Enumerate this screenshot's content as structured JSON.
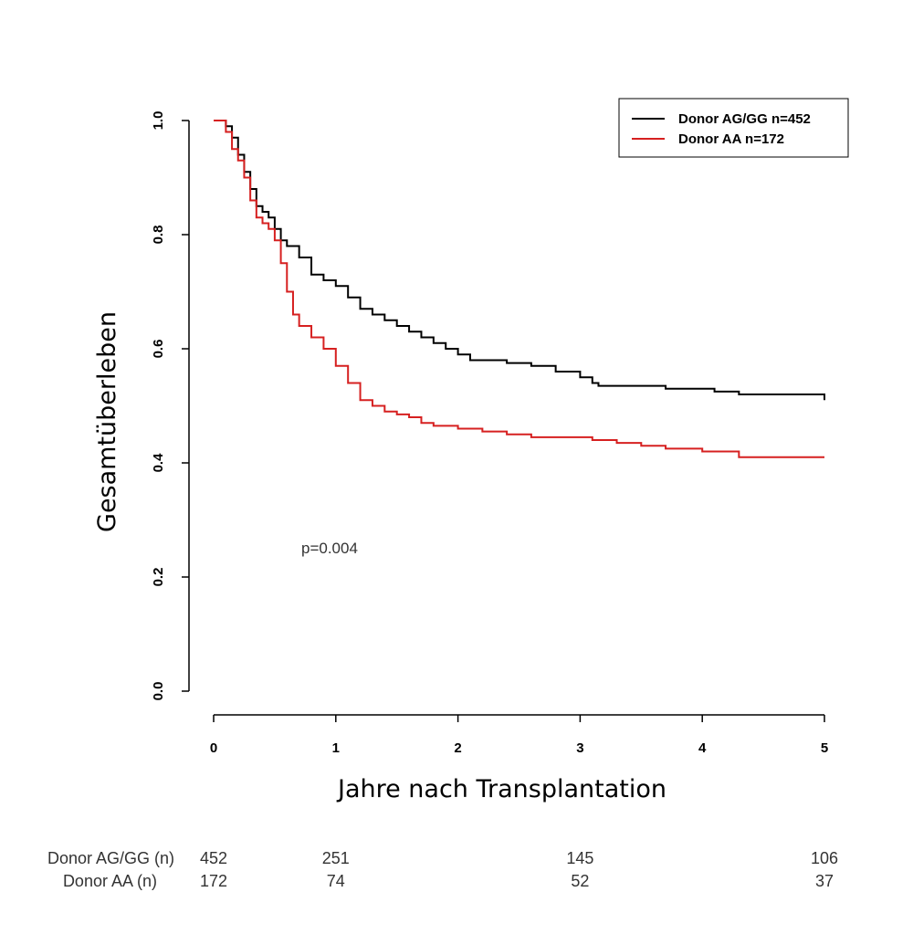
{
  "chart_data": {
    "type": "line",
    "subtype": "kaplan-meier",
    "xlabel": "Jahre nach Transplantation",
    "ylabel": "Gesamtüberleben",
    "xlim": [
      0,
      5
    ],
    "ylim": [
      0,
      1
    ],
    "xticks": [
      "0",
      "1",
      "2",
      "3",
      "4",
      "5"
    ],
    "yticks": [
      "0.0",
      "0.2",
      "0.4",
      "0.6",
      "0.8",
      "1.0"
    ],
    "legend_position": "top-right",
    "annotation": "p=0.004",
    "colors": {
      "donor_ag_gg": "#000000",
      "donor_aa": "#d62020"
    },
    "series": [
      {
        "name": "Donor AG/GG n=452",
        "x": [
          0,
          0.06,
          0.1,
          0.15,
          0.2,
          0.25,
          0.3,
          0.35,
          0.4,
          0.45,
          0.5,
          0.55,
          0.6,
          0.7,
          0.8,
          0.9,
          1.0,
          1.1,
          1.2,
          1.3,
          1.4,
          1.5,
          1.6,
          1.7,
          1.8,
          1.9,
          2.0,
          2.1,
          2.2,
          2.4,
          2.6,
          2.8,
          3.0,
          3.1,
          3.15,
          3.3,
          3.5,
          3.7,
          3.9,
          4.1,
          4.3,
          4.5,
          4.7,
          4.95,
          5.0
        ],
        "y": [
          1.0,
          1.0,
          0.99,
          0.97,
          0.94,
          0.91,
          0.88,
          0.85,
          0.84,
          0.83,
          0.81,
          0.79,
          0.78,
          0.76,
          0.73,
          0.72,
          0.71,
          0.69,
          0.67,
          0.66,
          0.65,
          0.64,
          0.63,
          0.62,
          0.61,
          0.6,
          0.59,
          0.58,
          0.58,
          0.575,
          0.57,
          0.56,
          0.55,
          0.54,
          0.535,
          0.535,
          0.535,
          0.53,
          0.53,
          0.525,
          0.52,
          0.52,
          0.52,
          0.52,
          0.51
        ]
      },
      {
        "name": "Donor AA n=172",
        "x": [
          0,
          0.05,
          0.1,
          0.15,
          0.2,
          0.25,
          0.3,
          0.35,
          0.4,
          0.45,
          0.5,
          0.55,
          0.6,
          0.65,
          0.7,
          0.8,
          0.9,
          1.0,
          1.1,
          1.2,
          1.3,
          1.4,
          1.5,
          1.6,
          1.7,
          1.8,
          2.0,
          2.2,
          2.4,
          2.6,
          2.8,
          3.0,
          3.1,
          3.3,
          3.5,
          3.7,
          4.0,
          4.3,
          4.6,
          5.0
        ],
        "y": [
          1.0,
          1.0,
          0.98,
          0.95,
          0.93,
          0.9,
          0.86,
          0.83,
          0.82,
          0.81,
          0.79,
          0.75,
          0.7,
          0.66,
          0.64,
          0.62,
          0.6,
          0.57,
          0.54,
          0.51,
          0.5,
          0.49,
          0.485,
          0.48,
          0.47,
          0.465,
          0.46,
          0.455,
          0.45,
          0.445,
          0.445,
          0.445,
          0.44,
          0.435,
          0.43,
          0.425,
          0.42,
          0.41,
          0.41,
          0.41
        ]
      }
    ],
    "risk_table": {
      "times": [
        0,
        1,
        3,
        5
      ],
      "rows": [
        {
          "label": "Donor AG/GG (n)",
          "values": [
            "452",
            "251",
            "145",
            "106"
          ]
        },
        {
          "label": "Donor AA (n)",
          "values": [
            "172",
            "74",
            "52",
            "37"
          ]
        }
      ]
    }
  }
}
